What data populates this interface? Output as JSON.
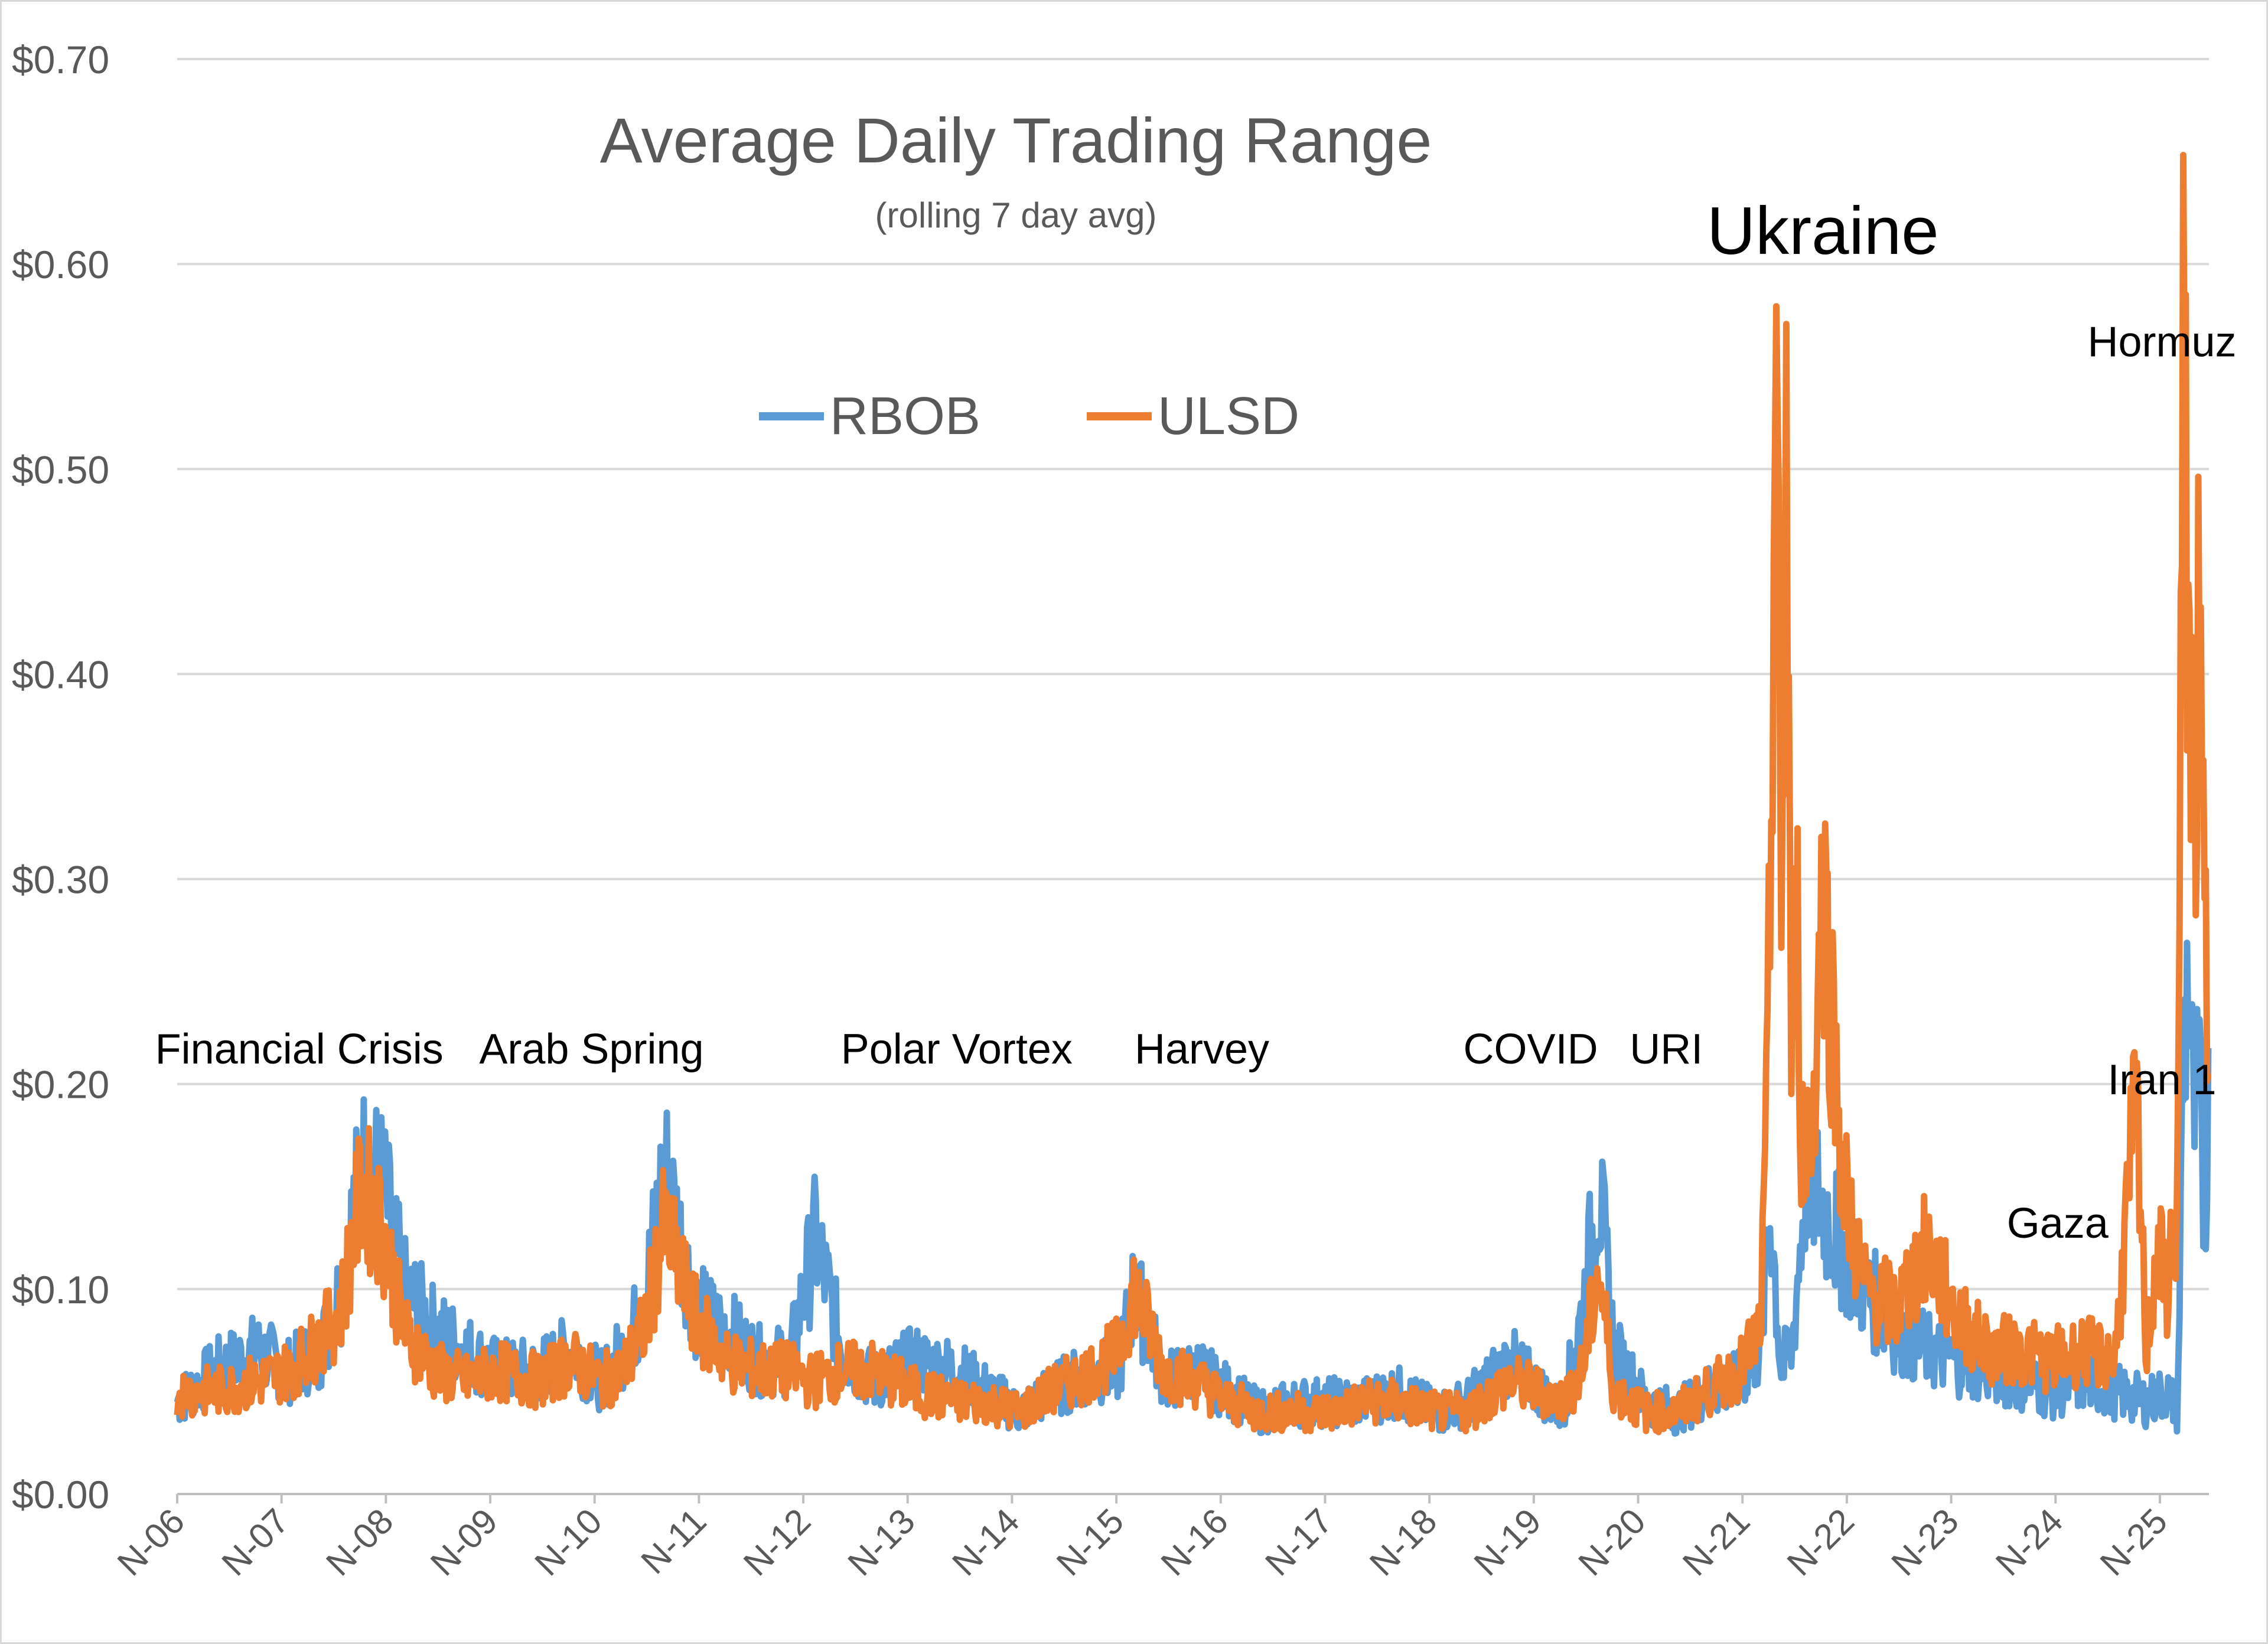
{
  "chart_data": {
    "type": "line",
    "title": "Average Daily Trading Range",
    "subtitle": "(rolling 7 day avg)",
    "ylim": [
      0,
      0.7
    ],
    "y_ticks": [
      "$0.00",
      "$0.10",
      "$0.20",
      "$0.30",
      "$0.40",
      "$0.50",
      "$0.60",
      "$0.70"
    ],
    "y_tick_values": [
      0,
      0.1,
      0.2,
      0.3,
      0.4,
      0.5,
      0.6,
      0.7
    ],
    "x_ticks": [
      "N-06",
      "N-07",
      "N-08",
      "N-09",
      "N-10",
      "N-11",
      "N-12",
      "N-13",
      "N-14",
      "N-15",
      "N-16",
      "N-17",
      "N-18",
      "N-19",
      "N-20",
      "N-21",
      "N-22",
      "N-23",
      "N-24",
      "N-25"
    ],
    "xlim": [
      2006.83,
      2026.3
    ],
    "grid": "horizontal",
    "legend_position": "top-center",
    "series": [
      {
        "name": "RBOB",
        "color": "#5b9bd5",
        "x": [
          2006.83,
          2007.2,
          2007.6,
          2007.9,
          2008.2,
          2008.4,
          2008.6,
          2008.8,
          2009.0,
          2009.3,
          2009.6,
          2009.9,
          2010.3,
          2010.6,
          2010.9,
          2011.1,
          2011.3,
          2011.5,
          2011.8,
          2012.1,
          2012.4,
          2012.7,
          2012.8,
          2012.95,
          2013.2,
          2013.5,
          2013.9,
          2014.3,
          2014.6,
          2014.9,
          2015.2,
          2015.6,
          2015.85,
          2016.0,
          2016.3,
          2016.6,
          2016.9,
          2017.2,
          2017.6,
          2017.9,
          2018.2,
          2018.5,
          2018.9,
          2019.2,
          2019.6,
          2019.9,
          2020.1,
          2020.3,
          2020.45,
          2020.6,
          2020.9,
          2021.2,
          2021.5,
          2021.8,
          2022.0,
          2022.1,
          2022.2,
          2022.3,
          2022.45,
          2022.6,
          2022.8,
          2023.0,
          2023.3,
          2023.6,
          2023.9,
          2024.2,
          2024.5,
          2024.8,
          2025.1,
          2025.4,
          2025.7,
          2025.9,
          2026.0,
          2026.05,
          2026.1,
          2026.15,
          2026.2,
          2026.25,
          2026.3
        ],
        "values": [
          0.045,
          0.06,
          0.07,
          0.06,
          0.07,
          0.1,
          0.16,
          0.15,
          0.1,
          0.08,
          0.07,
          0.06,
          0.06,
          0.07,
          0.055,
          0.07,
          0.09,
          0.16,
          0.09,
          0.08,
          0.065,
          0.065,
          0.09,
          0.125,
          0.07,
          0.055,
          0.065,
          0.06,
          0.05,
          0.04,
          0.05,
          0.06,
          0.06,
          0.1,
          0.055,
          0.06,
          0.05,
          0.04,
          0.045,
          0.045,
          0.045,
          0.05,
          0.04,
          0.045,
          0.065,
          0.05,
          0.04,
          0.09,
          0.15,
          0.07,
          0.045,
          0.04,
          0.05,
          0.055,
          0.07,
          0.14,
          0.06,
          0.07,
          0.16,
          0.14,
          0.12,
          0.1,
          0.08,
          0.07,
          0.065,
          0.06,
          0.055,
          0.05,
          0.055,
          0.05,
          0.045,
          0.05,
          0.04,
          0.2,
          0.26,
          0.18,
          0.2,
          0.14,
          0.19
        ]
      },
      {
        "name": "ULSD",
        "color": "#ed7d31",
        "x": [
          2006.83,
          2007.2,
          2007.6,
          2007.9,
          2008.2,
          2008.4,
          2008.6,
          2008.8,
          2009.0,
          2009.3,
          2009.6,
          2009.9,
          2010.3,
          2010.6,
          2010.9,
          2011.1,
          2011.3,
          2011.5,
          2011.8,
          2012.1,
          2012.4,
          2012.7,
          2012.9,
          2013.2,
          2013.5,
          2013.9,
          2014.3,
          2014.6,
          2014.9,
          2015.2,
          2015.6,
          2015.85,
          2016.0,
          2016.3,
          2016.6,
          2016.9,
          2017.2,
          2017.6,
          2017.9,
          2018.2,
          2018.5,
          2018.9,
          2019.2,
          2019.6,
          2019.9,
          2020.1,
          2020.3,
          2020.45,
          2020.6,
          2020.9,
          2021.2,
          2021.5,
          2021.8,
          2022.0,
          2022.05,
          2022.1,
          2022.15,
          2022.2,
          2022.25,
          2022.3,
          2022.35,
          2022.4,
          2022.5,
          2022.6,
          2022.8,
          2023.0,
          2023.3,
          2023.6,
          2023.9,
          2024.2,
          2024.5,
          2024.8,
          2025.1,
          2025.4,
          2025.6,
          2025.7,
          2025.8,
          2025.9,
          2026.0,
          2026.05,
          2026.1,
          2026.15,
          2026.2,
          2026.25,
          2026.3
        ],
        "values": [
          0.05,
          0.05,
          0.055,
          0.06,
          0.075,
          0.09,
          0.15,
          0.13,
          0.08,
          0.06,
          0.055,
          0.06,
          0.055,
          0.065,
          0.055,
          0.06,
          0.08,
          0.13,
          0.085,
          0.065,
          0.06,
          0.06,
          0.055,
          0.06,
          0.06,
          0.05,
          0.045,
          0.045,
          0.04,
          0.05,
          0.06,
          0.07,
          0.1,
          0.06,
          0.055,
          0.045,
          0.04,
          0.04,
          0.04,
          0.045,
          0.045,
          0.04,
          0.04,
          0.055,
          0.05,
          0.045,
          0.06,
          0.11,
          0.05,
          0.04,
          0.04,
          0.05,
          0.06,
          0.08,
          0.15,
          0.3,
          0.59,
          0.25,
          0.53,
          0.2,
          0.29,
          0.17,
          0.18,
          0.3,
          0.15,
          0.1,
          0.09,
          0.12,
          0.085,
          0.07,
          0.07,
          0.065,
          0.07,
          0.065,
          0.19,
          0.07,
          0.12,
          0.1,
          0.14,
          0.54,
          0.45,
          0.33,
          0.4,
          0.3,
          0.2
        ]
      }
    ],
    "annotations": [
      {
        "text": "Financial Crisis",
        "x": 2008.0,
        "y": 0.21
      },
      {
        "text": "Arab Spring",
        "x": 2010.8,
        "y": 0.21
      },
      {
        "text": "Polar Vortex",
        "x": 2014.3,
        "y": 0.21
      },
      {
        "text": "Harvey",
        "x": 2016.65,
        "y": 0.21
      },
      {
        "text": "COVID",
        "x": 2019.8,
        "y": 0.21
      },
      {
        "text": "URI",
        "x": 2021.1,
        "y": 0.21
      },
      {
        "text": "Ukraine",
        "x": 2022.6,
        "y": 0.605
      },
      {
        "text": "Hormuz",
        "x": 2025.85,
        "y": 0.555
      },
      {
        "text": "Iran 1",
        "x": 2025.85,
        "y": 0.195
      },
      {
        "text": "Gaza",
        "x": 2024.85,
        "y": 0.125
      }
    ]
  }
}
